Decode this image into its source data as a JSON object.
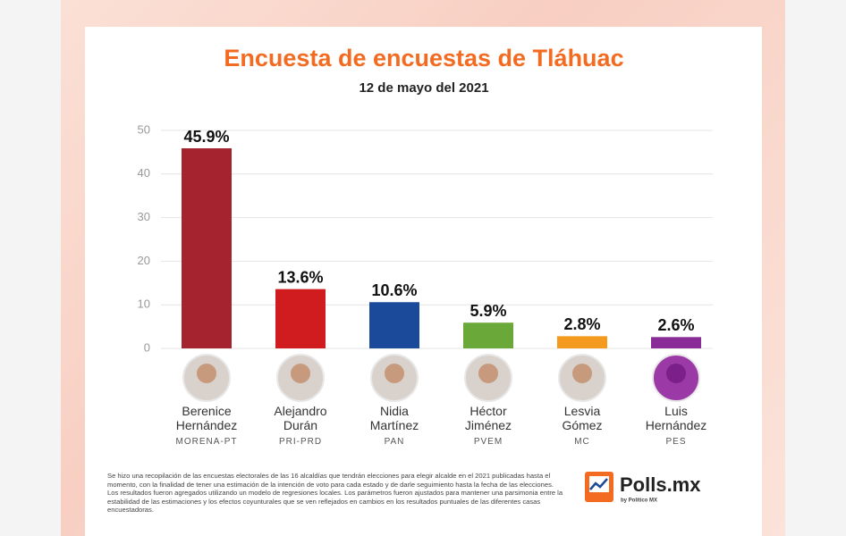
{
  "chart_data": {
    "type": "bar",
    "title": "Encuesta de encuestas de Tláhuac",
    "subtitle": "12 de mayo del 2021",
    "categories": [
      "Berenice Hernández",
      "Alejandro Durán",
      "Nidia Martínez",
      "Héctor Jiménez",
      "Lesvia Gómez",
      "Luis Hernández"
    ],
    "parties": [
      "MORENA-PT",
      "PRI-PRD",
      "PAN",
      "PVEM",
      "MC",
      "PES"
    ],
    "values": [
      45.9,
      13.6,
      10.6,
      5.9,
      2.8,
      2.6
    ],
    "value_labels": [
      "45.9%",
      "13.6%",
      "10.6%",
      "5.9%",
      "2.8%",
      "2.6%"
    ],
    "colors": [
      "#a5232e",
      "#d01c1f",
      "#1b4a9b",
      "#6aa83a",
      "#f39a1f",
      "#8a2c98"
    ],
    "ylim": [
      0,
      50
    ],
    "yticks": [
      0,
      10,
      20,
      30,
      40,
      50
    ],
    "grid": true
  },
  "footnote": "Se hizo una recopilación de las encuestas electorales de las 16 alcaldías que tendrán elecciones para elegir alcalde en el 2021 publicadas hasta el momento, con la finalidad de tener una estimación de la intención de voto para cada estado y de darle seguimiento hasta la fecha de las elecciones. Los resultados fueron agregados utilizando un modelo de regresiones locales. Los parámetros fueron ajustados para mantener una parsimonia entre la estabilidad de las estimaciones y los efectos coyunturales que se ven reflejados en cambios en los resultados puntuales de las diferentes casas encuestadoras.",
  "logo": {
    "name": "Polls.mx",
    "byline": "by Político MX"
  }
}
